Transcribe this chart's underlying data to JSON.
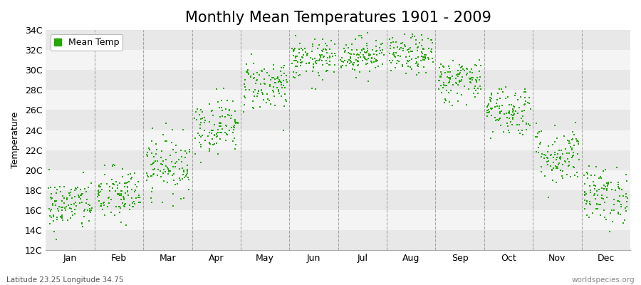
{
  "title": "Monthly Mean Temperatures 1901 - 2009",
  "ylabel": "Temperature",
  "subtitle": "Latitude 23.25 Longitude 34.75",
  "watermark": "worldspecies.org",
  "legend_label": "Mean Temp",
  "dot_color": "#22aa00",
  "fig_bg_color": "#ffffff",
  "plot_bg_color": "#e8e8e8",
  "band_colors": [
    "#e8e8e8",
    "#f4f4f4"
  ],
  "vline_color": "#888888",
  "ylim": [
    12,
    34
  ],
  "ytick_labels": [
    "12C",
    "14C",
    "16C",
    "18C",
    "20C",
    "22C",
    "24C",
    "26C",
    "28C",
    "30C",
    "32C",
    "34C"
  ],
  "ytick_values": [
    12,
    14,
    16,
    18,
    20,
    22,
    24,
    26,
    28,
    30,
    32,
    34
  ],
  "months": [
    "Jan",
    "Feb",
    "Mar",
    "Apr",
    "May",
    "Jun",
    "Jul",
    "Aug",
    "Sep",
    "Oct",
    "Nov",
    "Dec"
  ],
  "mean_temps": [
    16.5,
    17.5,
    20.5,
    24.5,
    28.5,
    31.0,
    31.5,
    31.5,
    29.0,
    26.0,
    21.5,
    17.5
  ],
  "temp_std": [
    1.3,
    1.4,
    1.5,
    1.4,
    1.3,
    1.0,
    0.9,
    1.0,
    1.1,
    1.3,
    1.5,
    1.4
  ],
  "n_years": 109,
  "dot_size": 3,
  "title_fontsize": 15,
  "axis_fontsize": 9,
  "legend_fontsize": 9
}
